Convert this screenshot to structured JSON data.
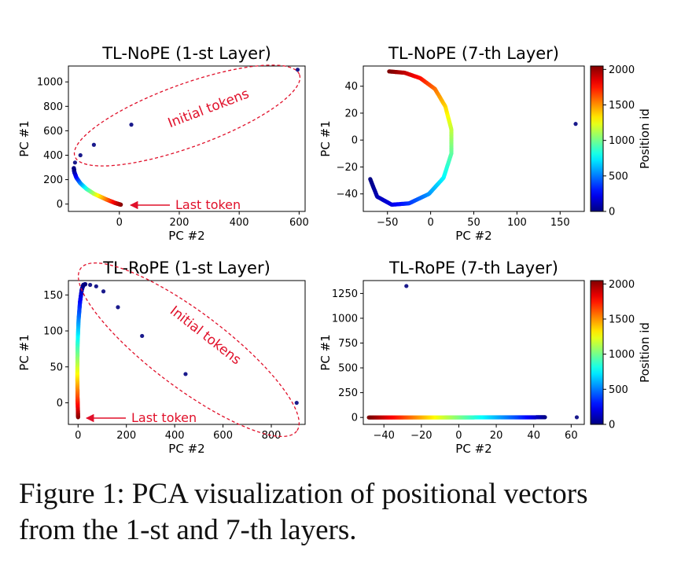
{
  "caption": {
    "line1": "Figure 1: PCA visualization of positional vectors",
    "line2": "from the 1-st and 7-th layers."
  },
  "colors": {
    "annotation": "#e0102a",
    "axes": "#000000",
    "colormap": "jet"
  },
  "chart_data": [
    {
      "type": "scatter",
      "title": "TL-NoPE (1-st Layer)",
      "xlabel": "PC #2",
      "ylabel": "PC #1",
      "xlim": [
        -170,
        620
      ],
      "ylim": [
        -60,
        1130
      ],
      "xticks": [
        0,
        200,
        400,
        600
      ],
      "yticks": [
        0,
        200,
        400,
        600,
        800,
        1000
      ],
      "xticklabels": [
        "0",
        "200",
        "400",
        "600"
      ],
      "yticklabels": [
        "0",
        "200",
        "400",
        "600",
        "800",
        "1000"
      ],
      "outlier_points": [
        {
          "x": 595,
          "y": 1100
        },
        {
          "x": 40,
          "y": 650
        },
        {
          "x": -85,
          "y": 485
        },
        {
          "x": -130,
          "y": 400
        },
        {
          "x": -148,
          "y": 340
        }
      ],
      "trajectory": {
        "description_values": "position-ordered point trail from position 2048 to position 0",
        "points": [
          {
            "x": 5,
            "y": -5,
            "pos": 2048
          },
          {
            "x": -15,
            "y": 10,
            "pos": 1900
          },
          {
            "x": -45,
            "y": 40,
            "pos": 1600
          },
          {
            "x": -85,
            "y": 85,
            "pos": 1200
          },
          {
            "x": -110,
            "y": 125,
            "pos": 900
          },
          {
            "x": -130,
            "y": 170,
            "pos": 600
          },
          {
            "x": -143,
            "y": 215,
            "pos": 350
          },
          {
            "x": -150,
            "y": 260,
            "pos": 150
          },
          {
            "x": -152,
            "y": 295,
            "pos": 0
          }
        ]
      },
      "ellipse_label": "Initial tokens",
      "arrow_label": "Last token"
    },
    {
      "type": "scatter",
      "title": "TL-NoPE (7-th Layer)",
      "xlabel": "PC #2",
      "ylabel": "PC #1",
      "xlim": [
        -78,
        178
      ],
      "ylim": [
        -53,
        55
      ],
      "xticks": [
        -50,
        0,
        50,
        100,
        150
      ],
      "yticks": [
        -40,
        -20,
        0,
        20,
        40
      ],
      "xticklabels": [
        "−50",
        "0",
        "50",
        "100",
        "150"
      ],
      "yticklabels": [
        "−40",
        "−20",
        "0",
        "20",
        "40"
      ],
      "outlier_points": [
        {
          "x": 168,
          "y": 12
        }
      ],
      "trajectory": {
        "points": [
          {
            "x": -70,
            "y": -29,
            "pos": 0
          },
          {
            "x": -62,
            "y": -42,
            "pos": 100
          },
          {
            "x": -45,
            "y": -48,
            "pos": 200
          },
          {
            "x": -25,
            "y": -47,
            "pos": 350
          },
          {
            "x": -2,
            "y": -40,
            "pos": 550
          },
          {
            "x": 15,
            "y": -28,
            "pos": 750
          },
          {
            "x": 24,
            "y": -10,
            "pos": 950
          },
          {
            "x": 24,
            "y": 8,
            "pos": 1150
          },
          {
            "x": 17,
            "y": 25,
            "pos": 1350
          },
          {
            "x": 5,
            "y": 38,
            "pos": 1550
          },
          {
            "x": -12,
            "y": 46,
            "pos": 1750
          },
          {
            "x": -30,
            "y": 50,
            "pos": 1900
          },
          {
            "x": -48,
            "y": 51,
            "pos": 2048
          }
        ]
      },
      "colorbar": {
        "label": "Position id",
        "range": [
          0,
          2048
        ],
        "ticks": [
          0,
          500,
          1000,
          1500,
          2000
        ],
        "ticklabels": [
          "0",
          "500",
          "1000",
          "1500",
          "2000"
        ]
      }
    },
    {
      "type": "scatter",
      "title": "TL-RoPE (1-st Layer)",
      "xlabel": "PC #2",
      "ylabel": "PC #1",
      "xlim": [
        -40,
        940
      ],
      "ylim": [
        -30,
        170
      ],
      "xticks": [
        0,
        200,
        400,
        600,
        800
      ],
      "yticks": [
        0,
        50,
        100,
        150
      ],
      "xticklabels": [
        "0",
        "200",
        "400",
        "600",
        "800"
      ],
      "yticklabels": [
        "0",
        "50",
        "100",
        "150"
      ],
      "outlier_points": [
        {
          "x": 905,
          "y": 0
        },
        {
          "x": 445,
          "y": 40
        },
        {
          "x": 265,
          "y": 93
        },
        {
          "x": 165,
          "y": 133
        },
        {
          "x": 105,
          "y": 155
        },
        {
          "x": 75,
          "y": 162
        },
        {
          "x": 50,
          "y": 164
        }
      ],
      "trajectory": {
        "points": [
          {
            "x": 0,
            "y": -20,
            "pos": 2048
          },
          {
            "x": -2,
            "y": 5,
            "pos": 1700
          },
          {
            "x": -3,
            "y": 40,
            "pos": 1300
          },
          {
            "x": -2,
            "y": 80,
            "pos": 900
          },
          {
            "x": 2,
            "y": 115,
            "pos": 550
          },
          {
            "x": 8,
            "y": 140,
            "pos": 300
          },
          {
            "x": 15,
            "y": 157,
            "pos": 120
          },
          {
            "x": 22,
            "y": 164,
            "pos": 20
          },
          {
            "x": 30,
            "y": 165,
            "pos": 0
          }
        ]
      },
      "ellipse_label": "Initial tokens",
      "arrow_label": "Last token"
    },
    {
      "type": "scatter",
      "title": "TL-RoPE (7-th Layer)",
      "xlabel": "PC #2",
      "ylabel": "PC #1",
      "xlim": [
        -51,
        67
      ],
      "ylim": [
        -70,
        1380
      ],
      "xticks": [
        -40,
        -20,
        0,
        20,
        40,
        60
      ],
      "yticks": [
        0,
        250,
        500,
        750,
        1000,
        1250
      ],
      "xticklabels": [
        "−40",
        "−20",
        "0",
        "20",
        "40",
        "60"
      ],
      "yticklabels": [
        "0",
        "250",
        "500",
        "750",
        "1000",
        "1250"
      ],
      "outlier_points": [
        {
          "x": -28,
          "y": 1325
        },
        {
          "x": 63,
          "y": 2
        }
      ],
      "trajectory": {
        "points": [
          {
            "x": 46,
            "y": 2,
            "pos": 0
          },
          {
            "x": 30,
            "y": 1,
            "pos": 400
          },
          {
            "x": 10,
            "y": 1,
            "pos": 800
          },
          {
            "x": -10,
            "y": 0,
            "pos": 1200
          },
          {
            "x": -30,
            "y": 0,
            "pos": 1650
          },
          {
            "x": -48,
            "y": 0,
            "pos": 2048
          }
        ]
      },
      "colorbar": {
        "label": "Position id",
        "range": [
          0,
          2048
        ],
        "ticks": [
          0,
          500,
          1000,
          1500,
          2000
        ],
        "ticklabels": [
          "0",
          "500",
          "1000",
          "1500",
          "2000"
        ]
      }
    }
  ]
}
